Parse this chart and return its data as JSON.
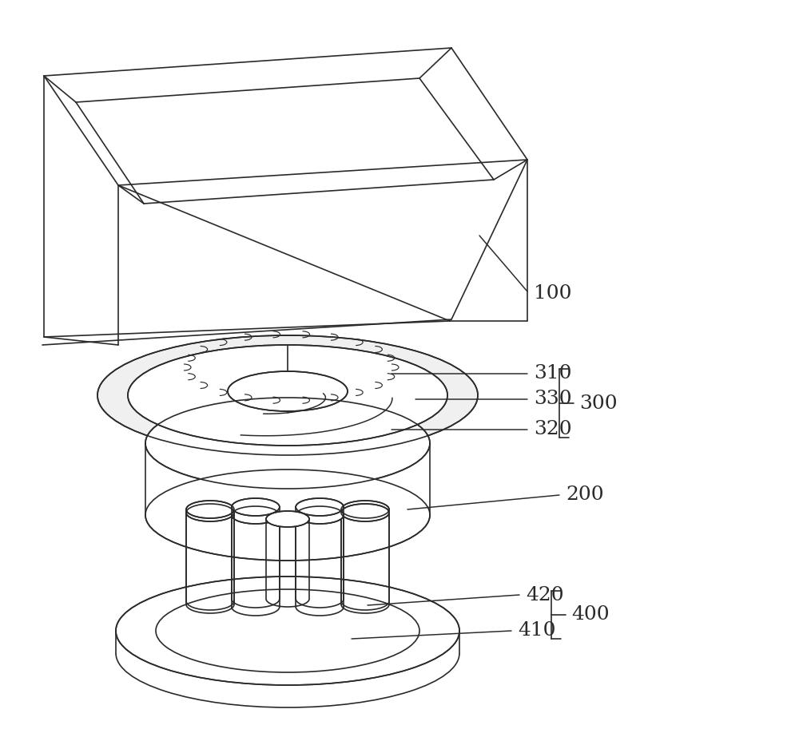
{
  "bg_color": "#ffffff",
  "line_color": "#2a2a2a",
  "line_width": 1.2,
  "label_fontsize": 18,
  "figsize": [
    10.0,
    9.23
  ],
  "dpi": 100
}
